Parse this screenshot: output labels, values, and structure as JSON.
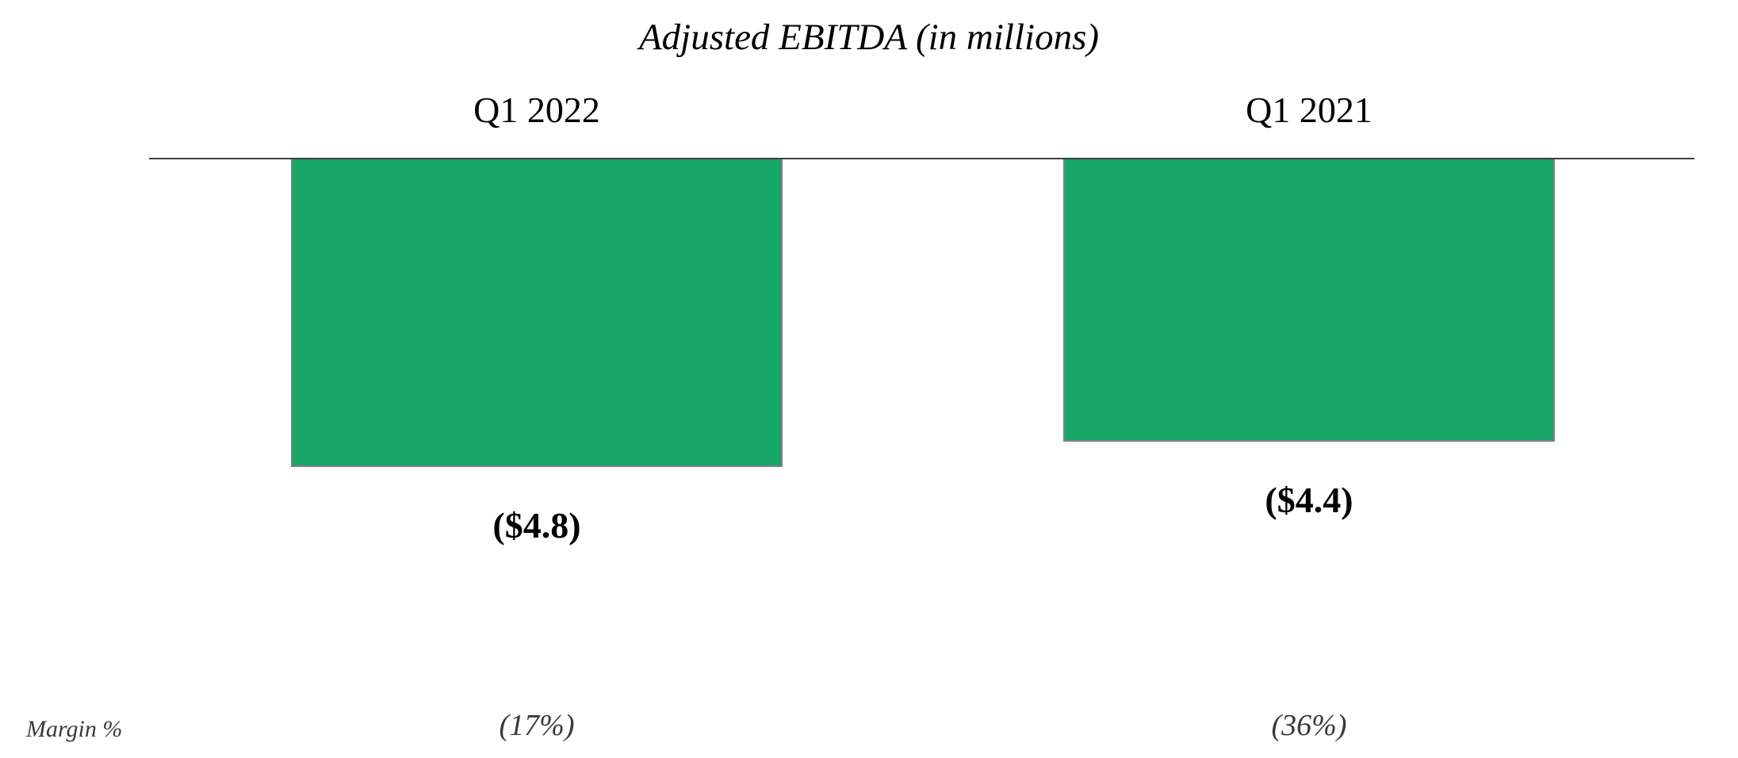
{
  "chart_data": {
    "type": "bar",
    "title": "Adjusted EBITDA (in millions)",
    "categories": [
      "Q1 2022",
      "Q1 2021"
    ],
    "values": [
      -4.8,
      -4.4
    ],
    "value_labels": [
      "($4.8)",
      "($4.4)"
    ],
    "margin_row_label": "Margin %",
    "margin_labels": [
      "(17%)",
      "(36%)"
    ],
    "xlabel": "",
    "ylabel": "",
    "ylim": [
      -5,
      0
    ],
    "grid": false,
    "legend": "none",
    "bar_color": "#17A768",
    "bar_border_color": "#7F7F7F",
    "axis_color": "#3F3F3F",
    "text_color": "#000000",
    "secondary_text_color": "#3A3A3A"
  }
}
